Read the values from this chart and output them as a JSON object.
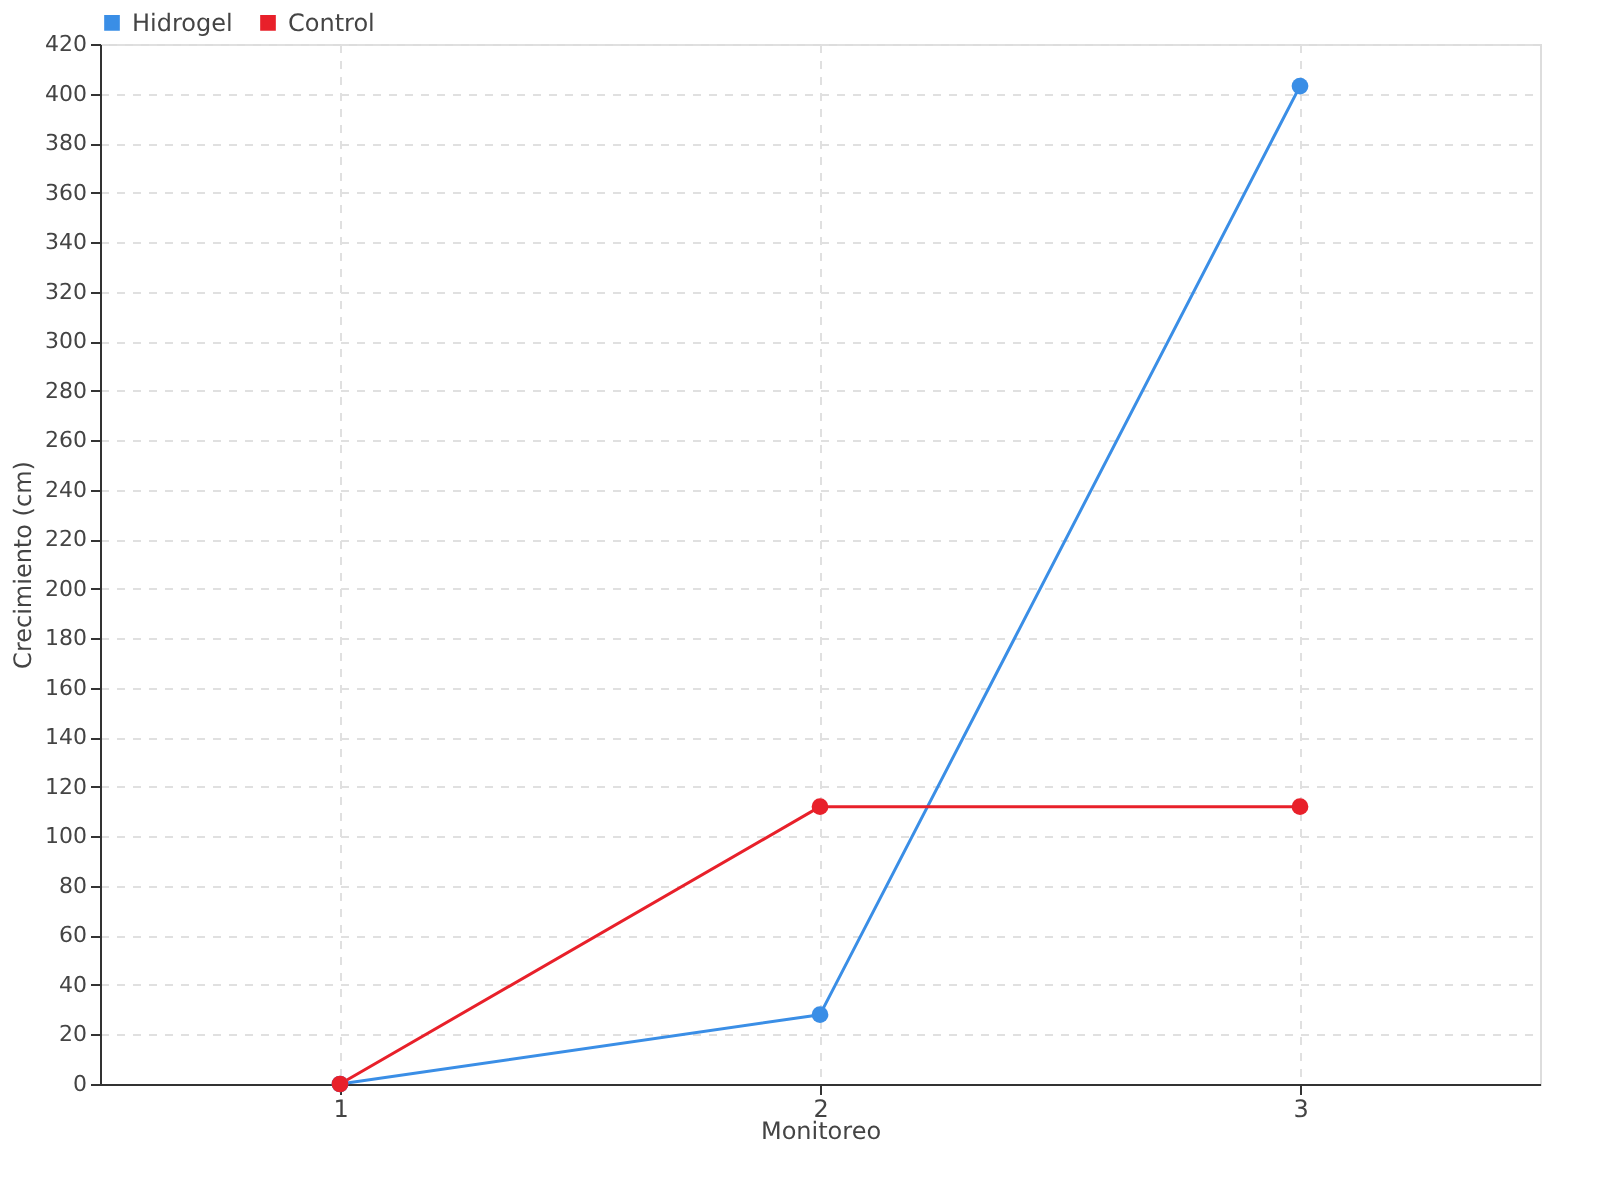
{
  "chart_data": {
    "type": "line",
    "xlabel": "Monitoreo",
    "ylabel": "Crecimiento (cm)",
    "x": [
      1,
      2,
      3
    ],
    "xlim": [
      0.5,
      3.5
    ],
    "xticks": [
      1,
      2,
      3
    ],
    "ylim": [
      0,
      420
    ],
    "yticks": [
      0,
      20,
      40,
      60,
      80,
      100,
      120,
      140,
      160,
      180,
      200,
      220,
      240,
      260,
      280,
      300,
      320,
      340,
      360,
      380,
      400,
      420
    ],
    "grid": true,
    "legend": "top left",
    "marker": "circle",
    "line_style": "solid",
    "series": [
      {
        "name": "Hidrogel",
        "color": "#3a8ee6",
        "values": [
          0,
          28,
          403
        ]
      },
      {
        "name": "Control",
        "color": "#e8202a",
        "values": [
          0,
          112,
          112
        ]
      }
    ]
  }
}
